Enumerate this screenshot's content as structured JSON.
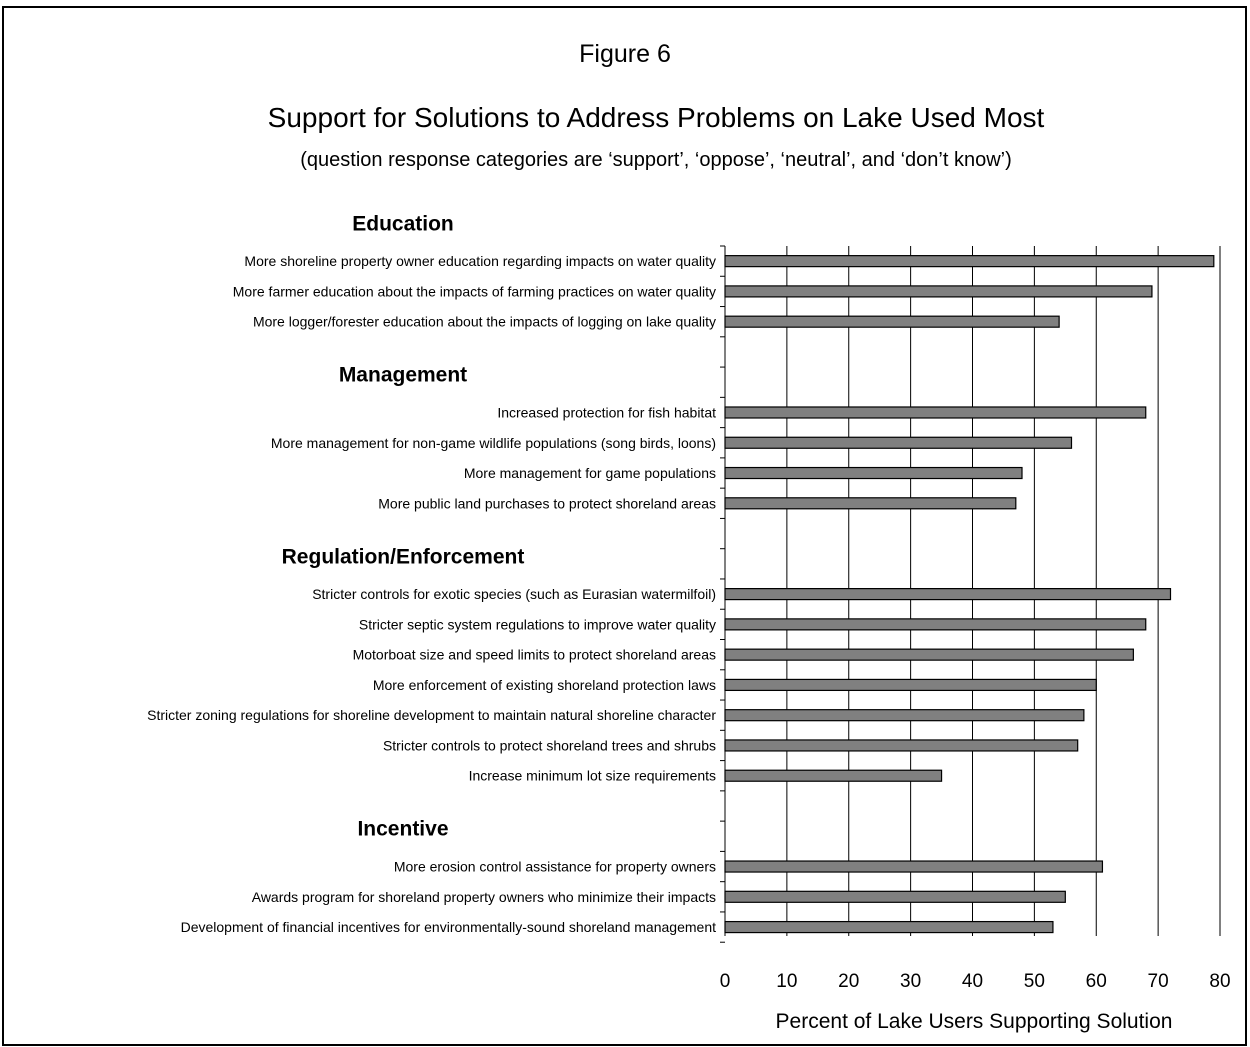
{
  "figure_label": "Figure 6",
  "chart_data": {
    "type": "bar",
    "orientation": "horizontal",
    "title": "Support for Solutions to Address Problems on Lake Used Most",
    "subtitle": "(question response categories are ‘support’, ‘oppose’, ‘neutral’, and ‘don’t know’)",
    "xlabel": "Percent of Lake Users Supporting Solution",
    "xlim": [
      0,
      80
    ],
    "xticks": [
      "0",
      "10",
      "20",
      "30",
      "40",
      "50",
      "60",
      "70",
      "80"
    ],
    "grid": "vertical",
    "bar_color": "#808080",
    "groups": [
      {
        "name": "Education",
        "categories": [
          "More shoreline property owner education regarding impacts on water quality",
          "More farmer education about the impacts of farming practices on water quality",
          "More logger/forester education about the impacts of logging on lake quality"
        ],
        "values": [
          79,
          69,
          54
        ]
      },
      {
        "name": "Management",
        "categories": [
          "Increased protection for fish habitat",
          "More management for non-game wildlife populations (song birds, loons)",
          "More management for game populations",
          "More public land purchases to protect shoreland areas"
        ],
        "values": [
          68,
          56,
          48,
          47
        ]
      },
      {
        "name": "Regulation/Enforcement",
        "categories": [
          "Stricter controls for exotic species (such as Eurasian watermilfoil)",
          "Stricter septic system regulations to improve water quality",
          "Motorboat size and speed limits to protect shoreland areas",
          "More enforcement of existing shoreland protection laws",
          "Stricter zoning regulations for shoreline development to maintain natural shoreline character",
          "Stricter controls to protect shoreland trees and shrubs",
          "Increase minimum lot size requirements"
        ],
        "values": [
          72,
          68,
          66,
          60,
          58,
          57,
          35
        ]
      },
      {
        "name": "Incentive",
        "categories": [
          "More erosion control assistance for property owners",
          "Awards program for shoreland property owners who minimize their impacts",
          "Development of financial incentives for environmentally-sound shoreland management"
        ],
        "values": [
          61,
          55,
          53
        ]
      }
    ]
  }
}
